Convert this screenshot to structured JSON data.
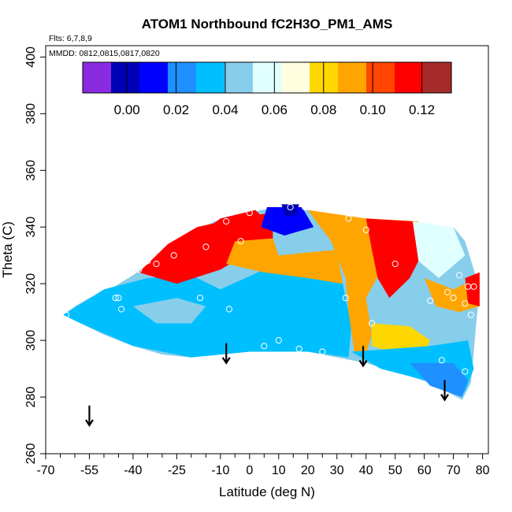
{
  "chart_data": {
    "type": "heatmap",
    "title": "ATOM1 Northbound fC2H3O_PM1_AMS",
    "flights_label": "Flts: 6,7,8,9",
    "dates_label": "MMDD: 0812,0815,0817,0820",
    "xlabel": "Latitude (deg N)",
    "ylabel": "Theta (C)",
    "xlim": [
      -70,
      82
    ],
    "ylim": [
      260,
      404
    ],
    "x_ticks": [
      -70,
      -55,
      -40,
      -25,
      -10,
      0,
      10,
      20,
      30,
      40,
      50,
      60,
      70,
      80
    ],
    "x_tick_labels": [
      "-70",
      "-55",
      "-40",
      "-25",
      "-10",
      "0",
      "10",
      "20",
      "30",
      "40",
      "50",
      "60",
      "70",
      "80"
    ],
    "x_minor_ticks": [
      -65,
      -60,
      -50,
      -45,
      -35,
      -30,
      -20,
      -15,
      -5,
      5,
      15,
      25,
      35,
      45,
      55,
      65,
      75
    ],
    "y_ticks": [
      260,
      280,
      300,
      320,
      340,
      360,
      380,
      400
    ],
    "y_tick_labels": [
      "260",
      "280",
      "300",
      "320",
      "340",
      "360",
      "380",
      "400"
    ],
    "colorbar": {
      "range": [
        -0.018,
        0.132
      ],
      "ticks": [
        0.0,
        0.02,
        0.04,
        0.06,
        0.08,
        0.1,
        0.12
      ],
      "tick_labels": [
        "0.00",
        "0.02",
        "0.04",
        "0.06",
        "0.08",
        "0.10",
        "0.12"
      ],
      "colors": [
        "#8a2be2",
        "#0000b4",
        "#0000ff",
        "#1e90ff",
        "#00bfff",
        "#87ceeb",
        "#e0ffff",
        "#ffffe0",
        "#ffd700",
        "#ffa500",
        "#ff4500",
        "#ff0000",
        "#a52a2a"
      ]
    },
    "outline": [
      [
        -64,
        309
      ],
      [
        -60,
        312
      ],
      [
        -55,
        315
      ],
      [
        -48,
        318
      ],
      [
        -40,
        323
      ],
      [
        -32,
        329
      ],
      [
        -25,
        334
      ],
      [
        -18,
        339
      ],
      [
        -12,
        342
      ],
      [
        -4,
        344
      ],
      [
        4,
        346
      ],
      [
        12,
        347
      ],
      [
        20,
        346
      ],
      [
        28,
        344
      ],
      [
        36,
        343
      ],
      [
        48,
        342
      ],
      [
        60,
        341
      ],
      [
        70,
        340
      ],
      [
        74,
        335
      ],
      [
        77,
        325
      ],
      [
        79,
        318
      ],
      [
        78,
        308
      ],
      [
        77,
        296
      ],
      [
        76,
        285
      ],
      [
        73,
        279
      ],
      [
        62,
        285
      ],
      [
        50,
        289
      ],
      [
        40,
        292
      ],
      [
        30,
        294
      ],
      [
        20,
        296
      ],
      [
        10,
        297
      ],
      [
        0,
        296
      ],
      [
        -10,
        295
      ],
      [
        -20,
        294
      ],
      [
        -30,
        295
      ],
      [
        -40,
        298
      ],
      [
        -50,
        302
      ],
      [
        -58,
        306
      ]
    ],
    "regions": [
      {
        "name": "tropical_low",
        "value": 0.035,
        "points": [
          [
            -64,
            309
          ],
          [
            -50,
            318
          ],
          [
            -35,
            322
          ],
          [
            -20,
            323
          ],
          [
            -10,
            318
          ],
          [
            5,
            325
          ],
          [
            20,
            324
          ],
          [
            32,
            320
          ],
          [
            35,
            305
          ],
          [
            34,
            294
          ],
          [
            20,
            296
          ],
          [
            0,
            296
          ],
          [
            -20,
            294
          ],
          [
            -40,
            298
          ],
          [
            -58,
            306
          ]
        ]
      },
      {
        "name": "pale_band_south",
        "value": 0.05,
        "points": [
          [
            -40,
            312
          ],
          [
            -25,
            315
          ],
          [
            -15,
            312
          ],
          [
            -20,
            306
          ],
          [
            -32,
            306
          ]
        ]
      },
      {
        "name": "north_upper_high",
        "value": 0.11,
        "points": [
          [
            -38,
            324
          ],
          [
            -28,
            334
          ],
          [
            -18,
            340
          ],
          [
            0,
            344
          ],
          [
            8,
            345
          ],
          [
            8,
            336
          ],
          [
            0,
            331
          ],
          [
            -10,
            325
          ],
          [
            -25,
            320
          ]
        ]
      },
      {
        "name": "mid_orange",
        "value": 0.09,
        "points": [
          [
            -5,
            335
          ],
          [
            8,
            336
          ],
          [
            10,
            330
          ],
          [
            30,
            332
          ],
          [
            32,
            320
          ],
          [
            20,
            322
          ],
          [
            5,
            324
          ],
          [
            -8,
            327
          ]
        ]
      },
      {
        "name": "north_west_red",
        "value": 0.115,
        "points": [
          [
            -22,
            334
          ],
          [
            -10,
            343
          ],
          [
            2,
            346
          ],
          [
            6,
            342
          ],
          [
            -5,
            336
          ],
          [
            -15,
            332
          ]
        ]
      },
      {
        "name": "cap_blue",
        "value": 0.015,
        "points": [
          [
            6,
            347
          ],
          [
            18,
            347
          ],
          [
            22,
            340
          ],
          [
            12,
            337
          ],
          [
            4,
            340
          ]
        ]
      },
      {
        "name": "cap_dark",
        "value": 0.0,
        "points": [
          [
            11,
            348
          ],
          [
            17,
            348
          ],
          [
            16,
            344
          ],
          [
            12,
            344
          ]
        ]
      },
      {
        "name": "east_orange",
        "value": 0.095,
        "points": [
          [
            20,
            346
          ],
          [
            40,
            343
          ],
          [
            58,
            342
          ],
          [
            48,
            330
          ],
          [
            40,
            315
          ],
          [
            42,
            302
          ],
          [
            40,
            295
          ],
          [
            36,
            296
          ],
          [
            34,
            310
          ],
          [
            33,
            322
          ],
          [
            28,
            335
          ]
        ]
      },
      {
        "name": "east_red",
        "value": 0.118,
        "points": [
          [
            40,
            343
          ],
          [
            56,
            342
          ],
          [
            62,
            336
          ],
          [
            55,
            322
          ],
          [
            48,
            315
          ],
          [
            44,
            322
          ],
          [
            42,
            332
          ]
        ]
      },
      {
        "name": "east_pale",
        "value": 0.055,
        "points": [
          [
            56,
            342
          ],
          [
            70,
            340
          ],
          [
            74,
            330
          ],
          [
            65,
            322
          ],
          [
            58,
            328
          ]
        ]
      },
      {
        "name": "far_east_orange",
        "value": 0.09,
        "points": [
          [
            60,
            322
          ],
          [
            70,
            318
          ],
          [
            78,
            322
          ],
          [
            79,
            312
          ],
          [
            72,
            310
          ],
          [
            64,
            312
          ]
        ]
      },
      {
        "name": "far_east_red",
        "value": 0.12,
        "points": [
          [
            74,
            322
          ],
          [
            79,
            324
          ],
          [
            79,
            312
          ],
          [
            75,
            313
          ]
        ]
      },
      {
        "name": "east_low_orange",
        "value": 0.085,
        "points": [
          [
            42,
            306
          ],
          [
            55,
            305
          ],
          [
            62,
            300
          ],
          [
            60,
            296
          ],
          [
            48,
            296
          ],
          [
            42,
            298
          ]
        ]
      },
      {
        "name": "east_lower_blue",
        "value": 0.03,
        "points": [
          [
            35,
            296
          ],
          [
            62,
            298
          ],
          [
            75,
            300
          ],
          [
            77,
            290
          ],
          [
            74,
            282
          ],
          [
            60,
            286
          ],
          [
            45,
            290
          ]
        ]
      },
      {
        "name": "east_bottom_deep",
        "value": 0.02,
        "points": [
          [
            55,
            292
          ],
          [
            70,
            292
          ],
          [
            75,
            286
          ],
          [
            73,
            280
          ],
          [
            62,
            284
          ]
        ]
      }
    ],
    "sample_points": [
      [
        -63,
        309
      ],
      [
        -46,
        315
      ],
      [
        -45,
        315
      ],
      [
        -44,
        311
      ],
      [
        -38,
        325
      ],
      [
        -35,
        328
      ],
      [
        -32,
        327
      ],
      [
        -26,
        330
      ],
      [
        -24,
        341
      ],
      [
        -17,
        315
      ],
      [
        -17,
        342
      ],
      [
        -15,
        333
      ],
      [
        -8,
        342
      ],
      [
        -7,
        311
      ],
      [
        -3,
        335
      ],
      [
        0,
        345
      ],
      [
        5,
        298
      ],
      [
        10,
        300
      ],
      [
        14,
        347
      ],
      [
        17,
        297
      ],
      [
        19,
        347
      ],
      [
        25,
        296
      ],
      [
        33,
        315
      ],
      [
        34,
        343
      ],
      [
        40,
        339
      ],
      [
        42,
        306
      ],
      [
        50,
        327
      ],
      [
        62,
        314
      ],
      [
        66,
        293
      ],
      [
        68,
        317
      ],
      [
        70,
        315
      ],
      [
        72,
        323
      ],
      [
        74,
        313
      ],
      [
        74,
        289
      ],
      [
        75,
        319
      ],
      [
        76,
        309
      ],
      [
        77,
        319
      ]
    ],
    "arrows": [
      {
        "x": -55,
        "y_top": 277,
        "y_bottom": 270
      },
      {
        "x": -8,
        "y_top": 299,
        "y_bottom": 292
      },
      {
        "x": 39,
        "y_top": 298,
        "y_bottom": 291
      },
      {
        "x": 67,
        "y_top": 286,
        "y_bottom": 279
      }
    ]
  }
}
